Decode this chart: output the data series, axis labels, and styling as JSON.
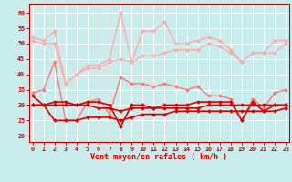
{
  "x": [
    0,
    1,
    2,
    3,
    4,
    5,
    6,
    7,
    8,
    9,
    10,
    11,
    12,
    13,
    14,
    15,
    16,
    17,
    18,
    19,
    20,
    21,
    22,
    23
  ],
  "series": [
    {
      "name": "rafales_high",
      "color": "#ffaaaa",
      "linewidth": 1.0,
      "marker": "D",
      "markersize": 2.0,
      "y": [
        52,
        51,
        54,
        37,
        40,
        43,
        43,
        45,
        60,
        44,
        54,
        54,
        57,
        50,
        50,
        51,
        52,
        51,
        48,
        44,
        47,
        47,
        51,
        51
      ]
    },
    {
      "name": "rafales_low",
      "color": "#ffaaaa",
      "linewidth": 1.0,
      "marker": "D",
      "markersize": 2.0,
      "y": [
        51,
        50,
        50,
        37,
        40,
        42,
        42,
        44,
        45,
        44,
        46,
        46,
        47,
        48,
        48,
        48,
        50,
        49,
        47,
        44,
        47,
        47,
        47,
        50
      ]
    },
    {
      "name": "moyen_high",
      "color": "#ff7777",
      "linewidth": 1.0,
      "marker": "D",
      "markersize": 2.0,
      "y": [
        34,
        35,
        44,
        25,
        25,
        31,
        32,
        27,
        39,
        37,
        37,
        36,
        37,
        36,
        35,
        36,
        33,
        33,
        32,
        25,
        32,
        29,
        34,
        35
      ]
    },
    {
      "name": "moyen_med",
      "color": "#dd0000",
      "linewidth": 1.2,
      "marker": "D",
      "markersize": 2.0,
      "y": [
        33,
        30,
        31,
        31,
        30,
        31,
        31,
        30,
        23,
        30,
        30,
        29,
        30,
        30,
        30,
        31,
        31,
        31,
        31,
        25,
        31,
        28,
        30,
        30
      ]
    },
    {
      "name": "moyen_low2",
      "color": "#dd0000",
      "linewidth": 1.2,
      "marker": "D",
      "markersize": 2.0,
      "y": [
        30,
        30,
        30,
        30,
        30,
        30,
        29,
        29,
        28,
        29,
        29,
        29,
        29,
        29,
        29,
        29,
        30,
        30,
        30,
        30,
        30,
        30,
        30,
        30
      ]
    },
    {
      "name": "moyen_low",
      "color": "#dd0000",
      "linewidth": 1.2,
      "marker": "D",
      "markersize": 2.0,
      "y": [
        30,
        30,
        25,
        25,
        25,
        26,
        26,
        26,
        25,
        26,
        27,
        27,
        27,
        28,
        28,
        28,
        28,
        28,
        28,
        28,
        28,
        28,
        28,
        29
      ]
    }
  ],
  "xlabel": "Vent moyen/en rafales ( km/h )",
  "xlim": [
    -0.3,
    23.3
  ],
  "ylim": [
    18,
    63
  ],
  "yticks": [
    20,
    25,
    30,
    35,
    40,
    45,
    50,
    55,
    60
  ],
  "xticks": [
    0,
    1,
    2,
    3,
    4,
    5,
    6,
    7,
    8,
    9,
    10,
    11,
    12,
    13,
    14,
    15,
    16,
    17,
    18,
    19,
    20,
    21,
    22,
    23
  ],
  "bg_color": "#c8ecec",
  "grid_color": "#ffffff",
  "tick_color": "#cc0000",
  "label_color": "#cc0000",
  "axis_color": "#cc0000"
}
